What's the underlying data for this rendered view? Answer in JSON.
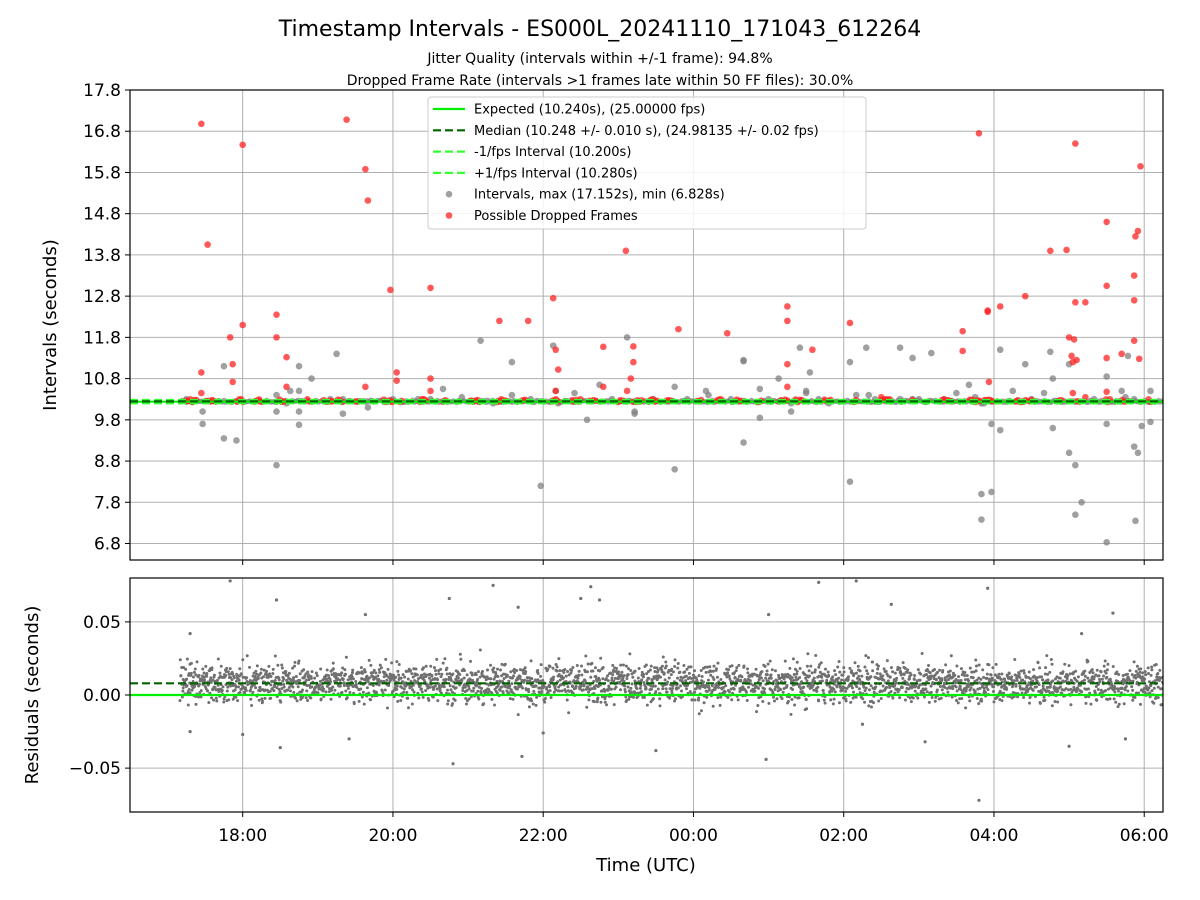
{
  "figure": {
    "title": "Timestamp Intervals - ES000L_20241110_171043_612264",
    "subtitle_line1": "Jitter Quality (intervals within +/-1 frame): 94.8%",
    "subtitle_line2": "Dropped Frame Rate (intervals >1 frames late within 50 FF files): 30.0%"
  },
  "colors": {
    "expected": "#00ee00",
    "median": "#006400",
    "interval_bounds": "#33ff33",
    "intervals": "#808080",
    "dropped": "#ff2222",
    "grid": "#b0b0b0"
  },
  "chart_data": [
    {
      "type": "scatter",
      "panel": "intervals",
      "xlabel": "",
      "ylabel": "Intervals (seconds)",
      "xlim": [
        "16:30",
        "06:15"
      ],
      "ylim": [
        6.4,
        17.8
      ],
      "x_ticks": [
        "18:00",
        "20:00",
        "22:00",
        "00:00",
        "02:00",
        "04:00",
        "06:00"
      ],
      "y_ticks": [
        "6.8",
        "7.8",
        "8.8",
        "9.8",
        "10.8",
        "11.8",
        "12.8",
        "13.8",
        "14.8",
        "15.8",
        "16.8",
        "17.8"
      ],
      "grid": true,
      "legend_placement": "top-center",
      "legend": [
        {
          "label": "Expected (10.240s), (25.00000 fps)",
          "style": "solid",
          "color": "#00ee00"
        },
        {
          "label": "Median (10.248 +/- 0.010 s), (24.98135 +/- 0.02 fps)",
          "style": "dashed",
          "color": "#006400"
        },
        {
          "label": "-1/fps Interval (10.200s)",
          "style": "dashed",
          "color": "#33ff33"
        },
        {
          "label": "+1/fps Interval (10.280s)",
          "style": "dashed",
          "color": "#33ff33"
        },
        {
          "label": "Intervals, max (17.152s), min (6.828s)",
          "style": "marker",
          "color": "#808080"
        },
        {
          "label": "Possible Dropped Frames",
          "style": "marker",
          "color": "#ff2222"
        }
      ],
      "reference_lines": {
        "expected": 10.24,
        "median": 10.248,
        "lower": 10.2,
        "upper": 10.28
      },
      "range": {
        "start": "17:10",
        "end": "06:15"
      },
      "dropped_points": [
        [
          "17:27",
          16.98
        ],
        [
          "17:32",
          14.05
        ],
        [
          "17:27",
          10.95
        ],
        [
          "17:27",
          10.45
        ],
        [
          "17:50",
          11.8
        ],
        [
          "17:52",
          11.15
        ],
        [
          "17:52",
          10.72
        ],
        [
          "18:00",
          12.1
        ],
        [
          "18:00",
          16.47
        ],
        [
          "18:27",
          12.35
        ],
        [
          "18:27",
          11.8
        ],
        [
          "18:35",
          11.32
        ],
        [
          "18:35",
          10.6
        ],
        [
          "19:23",
          17.08
        ],
        [
          "19:38",
          15.88
        ],
        [
          "19:40",
          15.12
        ],
        [
          "19:38",
          10.6
        ],
        [
          "19:58",
          12.95
        ],
        [
          "20:03",
          10.95
        ],
        [
          "20:03",
          10.75
        ],
        [
          "20:30",
          13.0
        ],
        [
          "20:30",
          10.8
        ],
        [
          "20:30",
          10.5
        ],
        [
          "21:25",
          12.2
        ],
        [
          "21:48",
          12.2
        ],
        [
          "22:08",
          12.75
        ],
        [
          "22:10",
          11.5
        ],
        [
          "22:12",
          11.02
        ],
        [
          "22:10",
          10.5
        ],
        [
          "22:48",
          11.57
        ],
        [
          "22:48",
          10.6
        ],
        [
          "23:06",
          13.9
        ],
        [
          "23:12",
          11.58
        ],
        [
          "23:12",
          11.2
        ],
        [
          "23:10",
          10.8
        ],
        [
          "23:07",
          10.5
        ],
        [
          "23:48",
          12.0
        ],
        [
          "00:27",
          11.9
        ],
        [
          "01:15",
          12.55
        ],
        [
          "01:15",
          12.2
        ],
        [
          "01:15",
          11.15
        ],
        [
          "01:15",
          10.6
        ],
        [
          "01:35",
          11.5
        ],
        [
          "02:05",
          12.15
        ],
        [
          "02:30",
          10.35
        ],
        [
          "03:35",
          11.95
        ],
        [
          "03:35",
          11.47
        ],
        [
          "03:48",
          16.75
        ],
        [
          "03:55",
          12.45
        ],
        [
          "03:55",
          12.42
        ],
        [
          "03:56",
          10.72
        ],
        [
          "04:05",
          12.55
        ],
        [
          "04:25",
          12.8
        ],
        [
          "04:45",
          13.9
        ],
        [
          "04:58",
          13.92
        ],
        [
          "05:00",
          11.8
        ],
        [
          "05:02",
          11.35
        ],
        [
          "05:03",
          11.2
        ],
        [
          "05:05",
          16.5
        ],
        [
          "05:05",
          12.65
        ],
        [
          "05:04",
          11.75
        ],
        [
          "05:06",
          11.25
        ],
        [
          "05:03",
          10.45
        ],
        [
          "05:13",
          12.65
        ],
        [
          "05:13",
          10.35
        ],
        [
          "05:30",
          14.6
        ],
        [
          "05:30",
          13.05
        ],
        [
          "05:30",
          11.3
        ],
        [
          "05:30",
          10.48
        ],
        [
          "05:42",
          11.4
        ],
        [
          "05:52",
          13.3
        ],
        [
          "05:52",
          12.7
        ],
        [
          "05:52",
          11.72
        ],
        [
          "05:53",
          14.25
        ],
        [
          "05:55",
          14.38
        ],
        [
          "05:57",
          15.95
        ],
        [
          "05:56",
          11.28
        ]
      ],
      "interval_outliers": [
        [
          "17:15",
          10.3
        ],
        [
          "17:28",
          10.0
        ],
        [
          "17:28",
          9.7
        ],
        [
          "17:45",
          11.1
        ],
        [
          "17:45",
          9.35
        ],
        [
          "17:55",
          9.3
        ],
        [
          "18:27",
          10.4
        ],
        [
          "18:27",
          10.0
        ],
        [
          "18:27",
          8.7
        ],
        [
          "18:35",
          10.2
        ],
        [
          "18:38",
          10.5
        ],
        [
          "18:45",
          11.1
        ],
        [
          "18:45",
          10.5
        ],
        [
          "18:45",
          10.0
        ],
        [
          "18:45",
          9.68
        ],
        [
          "18:55",
          10.8
        ],
        [
          "19:10",
          10.3
        ],
        [
          "19:15",
          11.4
        ],
        [
          "19:20",
          10.3
        ],
        [
          "19:20",
          9.95
        ],
        [
          "19:40",
          10.1
        ],
        [
          "20:00",
          10.3
        ],
        [
          "20:20",
          10.3
        ],
        [
          "20:30",
          10.3
        ],
        [
          "20:40",
          10.55
        ],
        [
          "20:55",
          10.35
        ],
        [
          "21:10",
          11.72
        ],
        [
          "21:20",
          10.2
        ],
        [
          "21:35",
          11.2
        ],
        [
          "21:35",
          10.4
        ],
        [
          "21:50",
          10.3
        ],
        [
          "21:58",
          8.2
        ],
        [
          "22:08",
          11.6
        ],
        [
          "22:10",
          10.5
        ],
        [
          "22:12",
          10.2
        ],
        [
          "22:25",
          10.45
        ],
        [
          "22:35",
          9.8
        ],
        [
          "22:45",
          10.65
        ],
        [
          "22:55",
          10.3
        ],
        [
          "23:07",
          11.8
        ],
        [
          "23:13",
          10.0
        ],
        [
          "23:13",
          9.95
        ],
        [
          "23:28",
          10.3
        ],
        [
          "23:45",
          10.6
        ],
        [
          "23:55",
          10.3
        ],
        [
          "23:45",
          8.6
        ],
        [
          "00:10",
          10.5
        ],
        [
          "00:12",
          10.4
        ],
        [
          "00:30",
          10.3
        ],
        [
          "00:40",
          11.25
        ],
        [
          "00:40",
          11.22
        ],
        [
          "00:40",
          9.25
        ],
        [
          "00:53",
          10.55
        ],
        [
          "00:53",
          9.85
        ],
        [
          "01:00",
          10.3
        ],
        [
          "01:08",
          10.8
        ],
        [
          "01:18",
          10.2
        ],
        [
          "01:18",
          10.0
        ],
        [
          "01:25",
          11.55
        ],
        [
          "01:30",
          10.5
        ],
        [
          "01:30",
          10.45
        ],
        [
          "01:33",
          10.95
        ],
        [
          "01:40",
          10.3
        ],
        [
          "01:48",
          10.2
        ],
        [
          "02:05",
          11.2
        ],
        [
          "02:05",
          8.3
        ],
        [
          "02:10",
          10.4
        ],
        [
          "02:18",
          11.55
        ],
        [
          "02:20",
          10.4
        ],
        [
          "02:25",
          10.3
        ],
        [
          "02:35",
          10.25
        ],
        [
          "02:45",
          11.55
        ],
        [
          "02:45",
          10.3
        ],
        [
          "02:55",
          10.3
        ],
        [
          "02:55",
          11.3
        ],
        [
          "03:00",
          10.3
        ],
        [
          "03:10",
          11.42
        ],
        [
          "03:20",
          10.3
        ],
        [
          "03:30",
          10.45
        ],
        [
          "03:40",
          10.65
        ],
        [
          "03:45",
          10.35
        ],
        [
          "03:50",
          10.2
        ],
        [
          "03:52",
          10.2
        ],
        [
          "03:50",
          8.0
        ],
        [
          "03:50",
          7.38
        ],
        [
          "03:58",
          9.7
        ],
        [
          "03:58",
          8.05
        ],
        [
          "04:05",
          11.5
        ],
        [
          "04:05",
          9.55
        ],
        [
          "04:15",
          10.5
        ],
        [
          "04:25",
          11.15
        ],
        [
          "04:30",
          10.3
        ],
        [
          "04:40",
          10.45
        ],
        [
          "04:45",
          11.45
        ],
        [
          "04:47",
          10.8
        ],
        [
          "04:47",
          9.6
        ],
        [
          "05:00",
          11.15
        ],
        [
          "05:00",
          9.0
        ],
        [
          "05:05",
          8.7
        ],
        [
          "05:05",
          7.5
        ],
        [
          "05:10",
          7.8
        ],
        [
          "05:20",
          10.3
        ],
        [
          "05:30",
          10.85
        ],
        [
          "05:30",
          9.7
        ],
        [
          "05:30",
          6.83
        ],
        [
          "05:42",
          10.5
        ],
        [
          "05:45",
          10.35
        ],
        [
          "05:47",
          11.35
        ],
        [
          "05:52",
          10.3
        ],
        [
          "05:52",
          9.15
        ],
        [
          "05:53",
          7.35
        ],
        [
          "05:55",
          9.0
        ],
        [
          "05:58",
          9.65
        ],
        [
          "06:05",
          10.5
        ],
        [
          "06:05",
          9.75
        ]
      ]
    },
    {
      "type": "scatter",
      "panel": "residuals",
      "xlabel": "Time (UTC)",
      "ylabel": "Residuals (seconds)",
      "xlim": [
        "16:30",
        "06:15"
      ],
      "ylim": [
        -0.08,
        0.08
      ],
      "x_ticks": [
        "18:00",
        "20:00",
        "22:00",
        "00:00",
        "02:00",
        "04:00",
        "06:00"
      ],
      "y_ticks": [
        "−0.05",
        "0.00",
        "0.05"
      ],
      "grid": true,
      "reference_lines": {
        "expected": 0.0,
        "median": 0.008
      },
      "residual_center": 0.008,
      "residual_spread": 0.011,
      "residual_count": 3000,
      "residual_outliers": [
        [
          "17:18",
          0.042
        ],
        [
          "17:18",
          -0.025
        ],
        [
          "17:50",
          0.078
        ],
        [
          "18:00",
          -0.027
        ],
        [
          "18:27",
          0.065
        ],
        [
          "18:30",
          -0.036
        ],
        [
          "19:25",
          -0.03
        ],
        [
          "19:38",
          0.055
        ],
        [
          "20:45",
          0.066
        ],
        [
          "20:48",
          -0.047
        ],
        [
          "21:20",
          0.075
        ],
        [
          "21:40",
          0.06
        ],
        [
          "21:43",
          -0.042
        ],
        [
          "22:00",
          -0.026
        ],
        [
          "22:30",
          0.066
        ],
        [
          "22:38",
          0.074
        ],
        [
          "22:45",
          0.065
        ],
        [
          "23:30",
          -0.038
        ],
        [
          "00:58",
          -0.044
        ],
        [
          "01:00",
          0.055
        ],
        [
          "01:40",
          0.077
        ],
        [
          "02:10",
          0.078
        ],
        [
          "02:15",
          -0.02
        ],
        [
          "02:38",
          0.062
        ],
        [
          "03:05",
          -0.032
        ],
        [
          "03:55",
          0.073
        ],
        [
          "03:48",
          -0.072
        ],
        [
          "05:00",
          -0.035
        ],
        [
          "05:10",
          0.042
        ],
        [
          "05:35",
          0.056
        ],
        [
          "05:45",
          -0.03
        ]
      ]
    }
  ]
}
